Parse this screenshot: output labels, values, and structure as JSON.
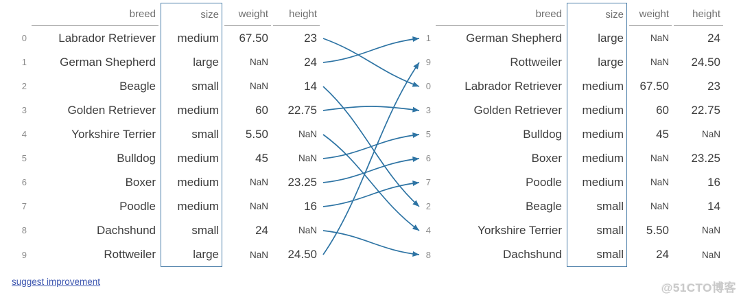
{
  "left_table": {
    "headers": [
      "breed",
      "size",
      "weight",
      "height"
    ],
    "highlighted_column": "size",
    "rows": [
      {
        "index": "0",
        "cells": [
          "Labrador Retriever",
          "medium",
          "67.50",
          "23"
        ]
      },
      {
        "index": "1",
        "cells": [
          "German Shepherd",
          "large",
          "NaN",
          "24"
        ]
      },
      {
        "index": "2",
        "cells": [
          "Beagle",
          "small",
          "NaN",
          "14"
        ]
      },
      {
        "index": "3",
        "cells": [
          "Golden Retriever",
          "medium",
          "60",
          "22.75"
        ]
      },
      {
        "index": "4",
        "cells": [
          "Yorkshire Terrier",
          "small",
          "5.50",
          "NaN"
        ]
      },
      {
        "index": "5",
        "cells": [
          "Bulldog",
          "medium",
          "45",
          "NaN"
        ]
      },
      {
        "index": "6",
        "cells": [
          "Boxer",
          "medium",
          "NaN",
          "23.25"
        ]
      },
      {
        "index": "7",
        "cells": [
          "Poodle",
          "medium",
          "NaN",
          "16"
        ]
      },
      {
        "index": "8",
        "cells": [
          "Dachshund",
          "small",
          "24",
          "NaN"
        ]
      },
      {
        "index": "9",
        "cells": [
          "Rottweiler",
          "large",
          "NaN",
          "24.50"
        ]
      }
    ]
  },
  "right_table": {
    "headers": [
      "breed",
      "size",
      "weight",
      "height"
    ],
    "highlighted_column": "size",
    "rows": [
      {
        "index": "1",
        "cells": [
          "German Shepherd",
          "large",
          "NaN",
          "24"
        ]
      },
      {
        "index": "9",
        "cells": [
          "Rottweiler",
          "large",
          "NaN",
          "24.50"
        ]
      },
      {
        "index": "0",
        "cells": [
          "Labrador Retriever",
          "medium",
          "67.50",
          "23"
        ]
      },
      {
        "index": "3",
        "cells": [
          "Golden Retriever",
          "medium",
          "60",
          "22.75"
        ]
      },
      {
        "index": "5",
        "cells": [
          "Bulldog",
          "medium",
          "45",
          "NaN"
        ]
      },
      {
        "index": "6",
        "cells": [
          "Boxer",
          "medium",
          "NaN",
          "23.25"
        ]
      },
      {
        "index": "7",
        "cells": [
          "Poodle",
          "medium",
          "NaN",
          "16"
        ]
      },
      {
        "index": "2",
        "cells": [
          "Beagle",
          "small",
          "NaN",
          "14"
        ]
      },
      {
        "index": "4",
        "cells": [
          "Yorkshire Terrier",
          "small",
          "5.50",
          "NaN"
        ]
      },
      {
        "index": "8",
        "cells": [
          "Dachshund",
          "small",
          "24",
          "NaN"
        ]
      }
    ]
  },
  "arrows": {
    "pairs": [
      [
        0,
        2
      ],
      [
        1,
        0
      ],
      [
        2,
        7
      ],
      [
        3,
        3
      ],
      [
        4,
        8
      ],
      [
        5,
        4
      ],
      [
        6,
        5
      ],
      [
        7,
        6
      ],
      [
        8,
        9
      ],
      [
        9,
        1
      ]
    ],
    "color": "#2e74a4"
  },
  "footer": {
    "link_label": "suggest improvement"
  },
  "watermark": {
    "text": "@51CTO博客"
  },
  "colors": {
    "highlight_border": "#4a7da8",
    "arrow": "#2e74a4",
    "link": "#3e57b0",
    "cell_text": "#3d3d3d",
    "header_text": "#6f6f6f",
    "index_text": "#8c8c8c"
  }
}
